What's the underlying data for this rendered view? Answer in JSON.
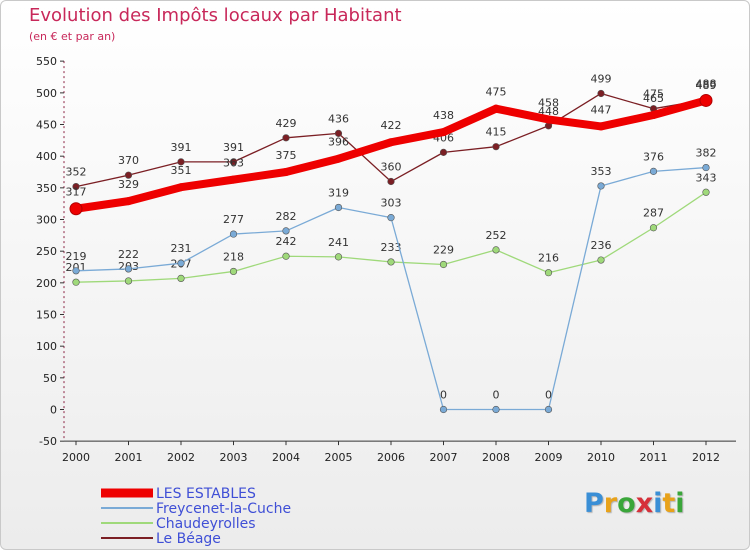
{
  "title": "Evolution des Impôts locaux par Habitant",
  "subtitle": "(en € et par an)",
  "logo": {
    "letters": [
      "P",
      "r",
      "o",
      "x",
      "i",
      "t",
      "i"
    ],
    "colors": [
      "#3a8fd6",
      "#e8a21a",
      "#3aa63a",
      "#d6303a",
      "#3a8fd6",
      "#e8a21a",
      "#3aa63a"
    ]
  },
  "chart_data": {
    "type": "line",
    "title": "Evolution des Impôts locaux par Habitant",
    "subtitle": "(en € et par an)",
    "xlabel": "",
    "ylabel": "",
    "ylim": [
      -50,
      550
    ],
    "yticks": [
      -50,
      0,
      50,
      100,
      150,
      200,
      250,
      300,
      350,
      400,
      450,
      500,
      550
    ],
    "grid": false,
    "legend_position": "bottom-left",
    "categories": [
      "2000",
      "2001",
      "2002",
      "2003",
      "2004",
      "2005",
      "2006",
      "2007",
      "2008",
      "2009",
      "2010",
      "2011",
      "2012"
    ],
    "series": [
      {
        "name": "Le Béage",
        "color": "#7b1f24",
        "values": [
          352,
          370,
          391,
          391,
          429,
          436,
          360,
          406,
          415,
          448,
          499,
          475,
          489
        ],
        "labels": [
          "352",
          "370",
          "391",
          "391",
          "429",
          "436",
          "360",
          "406",
          "415",
          "448",
          "499",
          "475",
          "489"
        ]
      },
      {
        "name": "Chaudeyrolles",
        "color": "#9fd97a",
        "values": [
          201,
          203,
          207,
          218,
          242,
          241,
          233,
          229,
          252,
          216,
          236,
          287,
          343
        ],
        "labels": [
          "201",
          "203",
          "207",
          "218",
          "242",
          "241",
          "233",
          "229",
          "252",
          "216",
          "236",
          "287",
          "343"
        ]
      },
      {
        "name": "Freycenet-la-Cuche",
        "color": "#7aaad6",
        "values": [
          219,
          222,
          231,
          277,
          282,
          319,
          303,
          0,
          0,
          0,
          353,
          376,
          382
        ],
        "labels": [
          "219",
          "222",
          "231",
          "277",
          "282",
          "319",
          "303",
          "0",
          "0",
          "0",
          "353",
          "376",
          "382"
        ]
      },
      {
        "name": "LES ESTABLES",
        "color": "#ee0000",
        "values": [
          317,
          329,
          351,
          363,
          375,
          396,
          422,
          438,
          475,
          458,
          447,
          465,
          488
        ],
        "labels": [
          "317",
          "329",
          "351",
          "363",
          "375",
          "396",
          "422",
          "438",
          "475",
          "458",
          "447",
          "465",
          "488"
        ]
      }
    ],
    "legend": [
      "LES ESTABLES",
      "Freycenet-la-Cuche",
      "Chaudeyrolles",
      "Le Béage"
    ]
  }
}
